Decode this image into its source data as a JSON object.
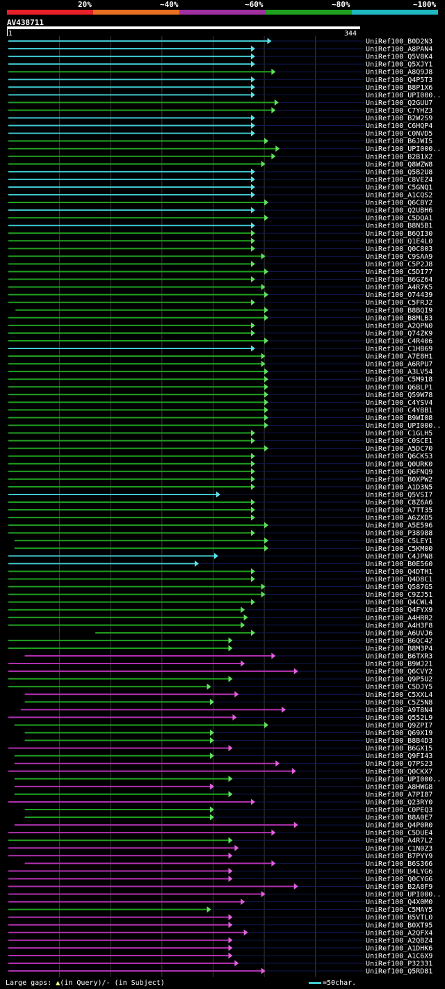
{
  "legend": {
    "labels": [
      "20%",
      "~40%",
      "~60%",
      "~80%",
      "~100%"
    ],
    "colors": [
      "#e8202a",
      "#e87020",
      "#a030a0",
      "#20a020",
      "#20b8c0"
    ]
  },
  "query": {
    "name": "AV438711",
    "start": "1",
    "end": "344",
    "length": 344
  },
  "footer": {
    "gaps_prefix": "Large gaps: ",
    "in_query": "(in Query)/",
    "in_subject": "- (in Subject)",
    "scale_label": "=50char."
  },
  "hits": [
    {
      "name": "UniRef100_B0D2N3",
      "color": "cyan",
      "start": 1,
      "end": 254
    },
    {
      "name": "UniRef100_A8PAN4",
      "color": "cyan",
      "start": 1,
      "end": 238
    },
    {
      "name": "UniRef100_Q5V8K4",
      "color": "cyan",
      "start": 1,
      "end": 238
    },
    {
      "name": "UniRef100_Q5XJY1",
      "color": "cyan",
      "start": 1,
      "end": 238
    },
    {
      "name": "UniRef100_A8Q9J8",
      "color": "green",
      "start": 1,
      "end": 258
    },
    {
      "name": "UniRef100_Q4P5T3",
      "color": "cyan",
      "start": 1,
      "end": 238
    },
    {
      "name": "UniRef100_B8P1X6",
      "color": "cyan",
      "start": 1,
      "end": 238
    },
    {
      "name": "UniRef100_UPI000..",
      "color": "cyan",
      "start": 1,
      "end": 238
    },
    {
      "name": "UniRef100_Q2GUU7",
      "color": "green",
      "start": 1,
      "end": 261
    },
    {
      "name": "UniRef100_C7YHZ3",
      "color": "green",
      "start": 1,
      "end": 258
    },
    {
      "name": "UniRef100_B2W2S9",
      "color": "cyan",
      "start": 1,
      "end": 238
    },
    {
      "name": "UniRef100_C6HQP4",
      "color": "cyan",
      "start": 1,
      "end": 238
    },
    {
      "name": "UniRef100_C0NVD5",
      "color": "cyan",
      "start": 1,
      "end": 238
    },
    {
      "name": "UniRef100_B6JWI5",
      "color": "green",
      "start": 1,
      "end": 251
    },
    {
      "name": "UniRef100_UPI000..",
      "color": "green",
      "start": 1,
      "end": 262
    },
    {
      "name": "UniRef100_B2B1X2",
      "color": "green",
      "start": 1,
      "end": 258
    },
    {
      "name": "UniRef100_Q8WZW8",
      "color": "green",
      "start": 1,
      "end": 248
    },
    {
      "name": "UniRef100_Q5B2U8",
      "color": "cyan",
      "start": 1,
      "end": 238
    },
    {
      "name": "UniRef100_C8VEZ4",
      "color": "cyan",
      "start": 1,
      "end": 238
    },
    {
      "name": "UniRef100_C5GNQ1",
      "color": "cyan",
      "start": 1,
      "end": 238
    },
    {
      "name": "UniRef100_A1CQS2",
      "color": "cyan",
      "start": 1,
      "end": 238
    },
    {
      "name": "UniRef100_Q6CBY2",
      "color": "green",
      "start": 1,
      "end": 251
    },
    {
      "name": "UniRef100_Q2UBH6",
      "color": "cyan",
      "start": 1,
      "end": 238
    },
    {
      "name": "UniRef100_C5DQA1",
      "color": "green",
      "start": 1,
      "end": 251
    },
    {
      "name": "UniRef100_B8N5B1",
      "color": "cyan",
      "start": 1,
      "end": 238
    },
    {
      "name": "UniRef100_B6QI30",
      "color": "green",
      "start": 1,
      "end": 238
    },
    {
      "name": "UniRef100_Q1E4L0",
      "color": "green",
      "start": 1,
      "end": 238
    },
    {
      "name": "UniRef100_Q0C803",
      "color": "green",
      "start": 1,
      "end": 238
    },
    {
      "name": "UniRef100_C9SAA9",
      "color": "green",
      "start": 1,
      "end": 248
    },
    {
      "name": "UniRef100_C5P2J8",
      "color": "green",
      "start": 1,
      "end": 238
    },
    {
      "name": "UniRef100_C5DI77",
      "color": "green",
      "start": 1,
      "end": 251
    },
    {
      "name": "UniRef100_B6GZ64",
      "color": "green",
      "start": 1,
      "end": 238
    },
    {
      "name": "UniRef100_A4R7K5",
      "color": "green",
      "start": 1,
      "end": 248
    },
    {
      "name": "UniRef100_O74439",
      "color": "green",
      "start": 1,
      "end": 251
    },
    {
      "name": "UniRef100_C5FRJ2",
      "color": "green",
      "start": 1,
      "end": 238
    },
    {
      "name": "UniRef100_B8BQI9",
      "color": "green",
      "start": 8,
      "end": 251
    },
    {
      "name": "UniRef100_B8MLB3",
      "color": "green",
      "start": 1,
      "end": 251
    },
    {
      "name": "UniRef100_A2QPN0",
      "color": "green",
      "start": 1,
      "end": 238
    },
    {
      "name": "UniRef100_Q74ZK9",
      "color": "green",
      "start": 1,
      "end": 238
    },
    {
      "name": "UniRef100_C4R406",
      "color": "green",
      "start": 1,
      "end": 251
    },
    {
      "name": "UniRef100_C1HB69",
      "color": "cyan",
      "start": 1,
      "end": 238
    },
    {
      "name": "UniRef100_A7E8H1",
      "color": "green",
      "start": 1,
      "end": 248
    },
    {
      "name": "UniRef100_A6RPU7",
      "color": "green",
      "start": 1,
      "end": 248
    },
    {
      "name": "UniRef100_A3LV54",
      "color": "green",
      "start": 1,
      "end": 251
    },
    {
      "name": "UniRef100_C5M918",
      "color": "green",
      "start": 1,
      "end": 251
    },
    {
      "name": "UniRef100_Q6BLP1",
      "color": "green",
      "start": 1,
      "end": 251
    },
    {
      "name": "UniRef100_Q59W78",
      "color": "green",
      "start": 1,
      "end": 251
    },
    {
      "name": "UniRef100_C4YSV4",
      "color": "green",
      "start": 1,
      "end": 251
    },
    {
      "name": "UniRef100_C4YBB1",
      "color": "green",
      "start": 1,
      "end": 251
    },
    {
      "name": "UniRef100_B9WI08",
      "color": "green",
      "start": 1,
      "end": 251
    },
    {
      "name": "UniRef100_UPI000..",
      "color": "green",
      "start": 1,
      "end": 251
    },
    {
      "name": "UniRef100_C1GLH5",
      "color": "green",
      "start": 1,
      "end": 238
    },
    {
      "name": "UniRef100_C0SCE1",
      "color": "green",
      "start": 1,
      "end": 238
    },
    {
      "name": "UniRef100_A5DC70",
      "color": "green",
      "start": 1,
      "end": 251
    },
    {
      "name": "UniRef100_Q6CK53",
      "color": "green",
      "start": 1,
      "end": 238
    },
    {
      "name": "UniRef100_Q0URK0",
      "color": "green",
      "start": 1,
      "end": 238
    },
    {
      "name": "UniRef100_Q6FNQ9",
      "color": "green",
      "start": 1,
      "end": 238
    },
    {
      "name": "UniRef100_B0XPW2",
      "color": "green",
      "start": 1,
      "end": 238
    },
    {
      "name": "UniRef100_A1D3N5",
      "color": "green",
      "start": 1,
      "end": 238
    },
    {
      "name": "UniRef100_Q5VSI7",
      "color": "cyan",
      "start": 1,
      "end": 204
    },
    {
      "name": "UniRef100_C8Z6A6",
      "color": "green",
      "start": 1,
      "end": 238
    },
    {
      "name": "UniRef100_A7TT35",
      "color": "green",
      "start": 1,
      "end": 238
    },
    {
      "name": "UniRef100_A6ZXD5",
      "color": "green",
      "start": 1,
      "end": 238
    },
    {
      "name": "UniRef100_A5E596",
      "color": "green",
      "start": 1,
      "end": 251
    },
    {
      "name": "UniRef100_P38988",
      "color": "green",
      "start": 1,
      "end": 238
    },
    {
      "name": "UniRef100_C5LEY1",
      "color": "green",
      "start": 7,
      "end": 251
    },
    {
      "name": "UniRef100_C5KM00",
      "color": "green",
      "start": 7,
      "end": 251
    },
    {
      "name": "UniRef100_C4JPN8",
      "color": "cyan",
      "start": 1,
      "end": 202
    },
    {
      "name": "UniRef100_B0E560",
      "color": "cyan",
      "start": 1,
      "end": 183
    },
    {
      "name": "UniRef100_Q4DTH1",
      "color": "green",
      "start": 1,
      "end": 238
    },
    {
      "name": "UniRef100_Q4D8C1",
      "color": "green",
      "start": 1,
      "end": 238
    },
    {
      "name": "UniRef100_Q587G5",
      "color": "green",
      "start": 1,
      "end": 248
    },
    {
      "name": "UniRef100_C9ZJ51",
      "color": "green",
      "start": 1,
      "end": 248
    },
    {
      "name": "UniRef100_Q4CWL4",
      "color": "green",
      "start": 1,
      "end": 238
    },
    {
      "name": "UniRef100_Q4FYX9",
      "color": "green",
      "start": 1,
      "end": 228
    },
    {
      "name": "UniRef100_A4HRR2",
      "color": "green",
      "start": 1,
      "end": 231
    },
    {
      "name": "UniRef100_A4H3F8",
      "color": "green",
      "start": 1,
      "end": 228
    },
    {
      "name": "UniRef100_A6UVJ6",
      "color": "green",
      "start": 86,
      "end": 238
    },
    {
      "name": "UniRef100_B6QC42",
      "color": "green",
      "start": 1,
      "end": 216
    },
    {
      "name": "UniRef100_B8M3P4",
      "color": "green",
      "start": 1,
      "end": 216
    },
    {
      "name": "UniRef100_B6TXR3",
      "color": "magenta",
      "start": 17,
      "end": 258
    },
    {
      "name": "UniRef100_B9WJ21",
      "color": "magenta",
      "start": 1,
      "end": 228
    },
    {
      "name": "UniRef100_Q6CVY2",
      "color": "magenta",
      "start": 1,
      "end": 280
    },
    {
      "name": "UniRef100_Q9P5U2",
      "color": "green",
      "start": 1,
      "end": 216
    },
    {
      "name": "UniRef100_C5DJY5",
      "color": "green",
      "start": 1,
      "end": 195
    },
    {
      "name": "UniRef100_C5XXL4",
      "color": "magenta",
      "start": 17,
      "end": 222
    },
    {
      "name": "UniRef100_C5Z5N8",
      "color": "green",
      "start": 17,
      "end": 198
    },
    {
      "name": "UniRef100_A9T8N4",
      "color": "magenta",
      "start": 13,
      "end": 268
    },
    {
      "name": "UniRef100_Q552L9",
      "color": "magenta",
      "start": 1,
      "end": 220
    },
    {
      "name": "UniRef100_Q9ZPI7",
      "color": "green",
      "start": 7,
      "end": 251
    },
    {
      "name": "UniRef100_Q69X19",
      "color": "green",
      "start": 17,
      "end": 198
    },
    {
      "name": "UniRef100_B8B4D3",
      "color": "green",
      "start": 17,
      "end": 198
    },
    {
      "name": "UniRef100_B6GX15",
      "color": "magenta",
      "start": 1,
      "end": 216
    },
    {
      "name": "UniRef100_Q9FI43",
      "color": "green",
      "start": 7,
      "end": 198
    },
    {
      "name": "UniRef100_Q7PS23",
      "color": "magenta",
      "start": 7,
      "end": 262
    },
    {
      "name": "UniRef100_Q0CKX7",
      "color": "magenta",
      "start": 1,
      "end": 278
    },
    {
      "name": "UniRef100_UPI000..",
      "color": "green",
      "start": 7,
      "end": 216
    },
    {
      "name": "UniRef100_A8HWG8",
      "color": "magenta",
      "start": 7,
      "end": 198
    },
    {
      "name": "UniRef100_A7PI87",
      "color": "green",
      "start": 7,
      "end": 216
    },
    {
      "name": "UniRef100_Q23RY0",
      "color": "magenta",
      "start": 1,
      "end": 238
    },
    {
      "name": "UniRef100_C0PEQ3",
      "color": "green",
      "start": 17,
      "end": 198
    },
    {
      "name": "UniRef100_B8A0E7",
      "color": "green",
      "start": 17,
      "end": 198
    },
    {
      "name": "UniRef100_Q4P0R0",
      "color": "magenta",
      "start": 7,
      "end": 280
    },
    {
      "name": "UniRef100_C5DUE4",
      "color": "magenta",
      "start": 1,
      "end": 258
    },
    {
      "name": "UniRef100_A4R7L2",
      "color": "green",
      "start": 1,
      "end": 216
    },
    {
      "name": "UniRef100_C1N0Z3",
      "color": "magenta",
      "start": 1,
      "end": 222
    },
    {
      "name": "UniRef100_B7PYY9",
      "color": "magenta",
      "start": 1,
      "end": 216
    },
    {
      "name": "UniRef100_B6S366",
      "color": "magenta",
      "start": 17,
      "end": 258
    },
    {
      "name": "UniRef100_B4LYG6",
      "color": "magenta",
      "start": 1,
      "end": 216
    },
    {
      "name": "UniRef100_Q0CYG6",
      "color": "magenta",
      "start": 1,
      "end": 216
    },
    {
      "name": "UniRef100_B2A8F9",
      "color": "magenta",
      "start": 1,
      "end": 280
    },
    {
      "name": "UniRef100_UPI000..",
      "color": "magenta",
      "start": 1,
      "end": 248
    },
    {
      "name": "UniRef100_Q4X0M0",
      "color": "magenta",
      "start": 1,
      "end": 228
    },
    {
      "name": "UniRef100_C5MAY5",
      "color": "green",
      "start": 1,
      "end": 195
    },
    {
      "name": "UniRef100_B5VTL0",
      "color": "magenta",
      "start": 1,
      "end": 216
    },
    {
      "name": "UniRef100_B0XT95",
      "color": "magenta",
      "start": 1,
      "end": 216
    },
    {
      "name": "UniRef100_A2QFX4",
      "color": "magenta",
      "start": 1,
      "end": 231
    },
    {
      "name": "UniRef100_A2QBZ4",
      "color": "magenta",
      "start": 1,
      "end": 216
    },
    {
      "name": "UniRef100_A1DHK6",
      "color": "magenta",
      "start": 1,
      "end": 216
    },
    {
      "name": "UniRef100_A1C6X9",
      "color": "magenta",
      "start": 1,
      "end": 216
    },
    {
      "name": "UniRef100_P32331",
      "color": "magenta",
      "start": 1,
      "end": 222
    },
    {
      "name": "UniRef100_Q5RD81",
      "color": "magenta",
      "start": 1,
      "end": 248
    }
  ]
}
